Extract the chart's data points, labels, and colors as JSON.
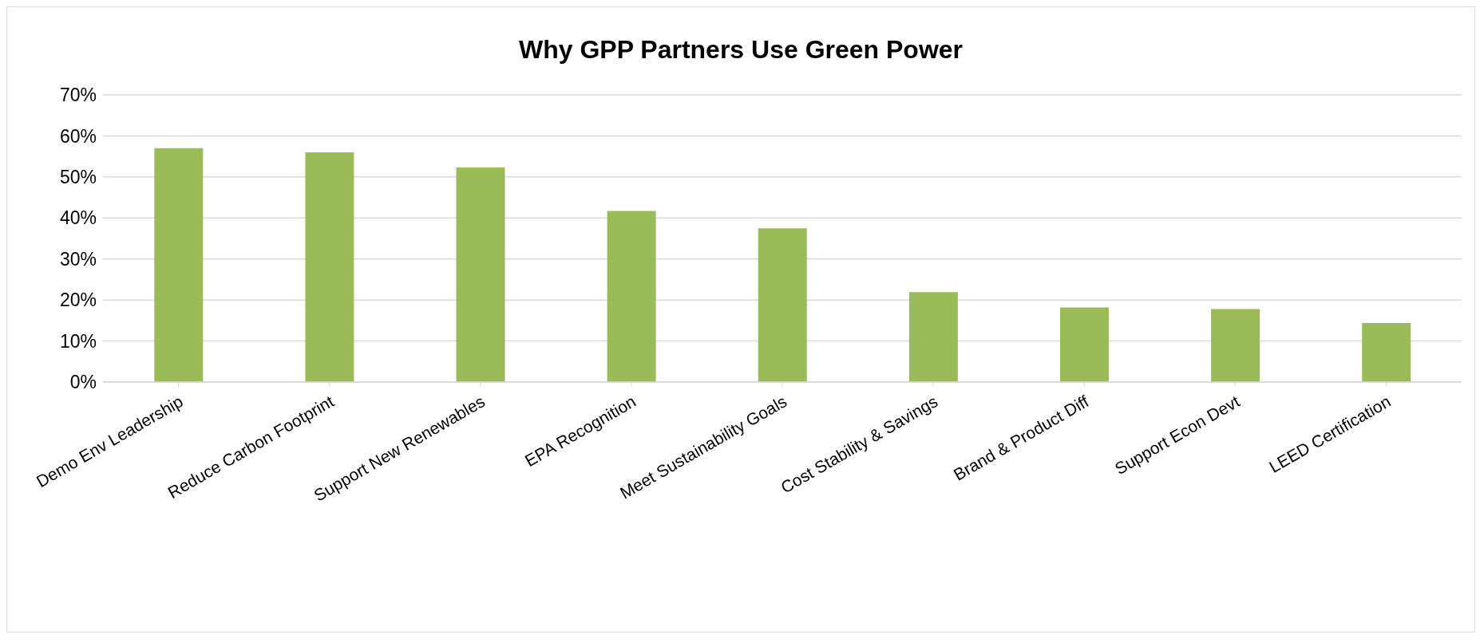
{
  "chart_data": {
    "type": "bar",
    "title": "Why GPP Partners Use Green Power",
    "categories": [
      "Demo Env Leadership",
      "Reduce Carbon Footprint",
      "Support New Renewables",
      "EPA Recognition",
      "Meet Sustainability Goals",
      "Cost Stability & Savings",
      "Brand & Product Diff",
      "Support Econ Devt",
      "LEED Certification"
    ],
    "values": [
      57,
      56,
      52.3,
      41.7,
      37.5,
      21.9,
      18.2,
      17.8,
      14.4
    ],
    "color": "#9bbb59",
    "ylim": [
      0,
      70
    ],
    "yticks": [
      {
        "value": 0,
        "label": "0%"
      },
      {
        "value": 10,
        "label": "10%"
      },
      {
        "value": 20,
        "label": "20%"
      },
      {
        "value": 30,
        "label": "30%"
      },
      {
        "value": 40,
        "label": "40%"
      },
      {
        "value": 50,
        "label": "50%"
      },
      {
        "value": 60,
        "label": "60%"
      },
      {
        "value": 70,
        "label": "70%"
      }
    ],
    "grid": "y",
    "legend": false
  }
}
